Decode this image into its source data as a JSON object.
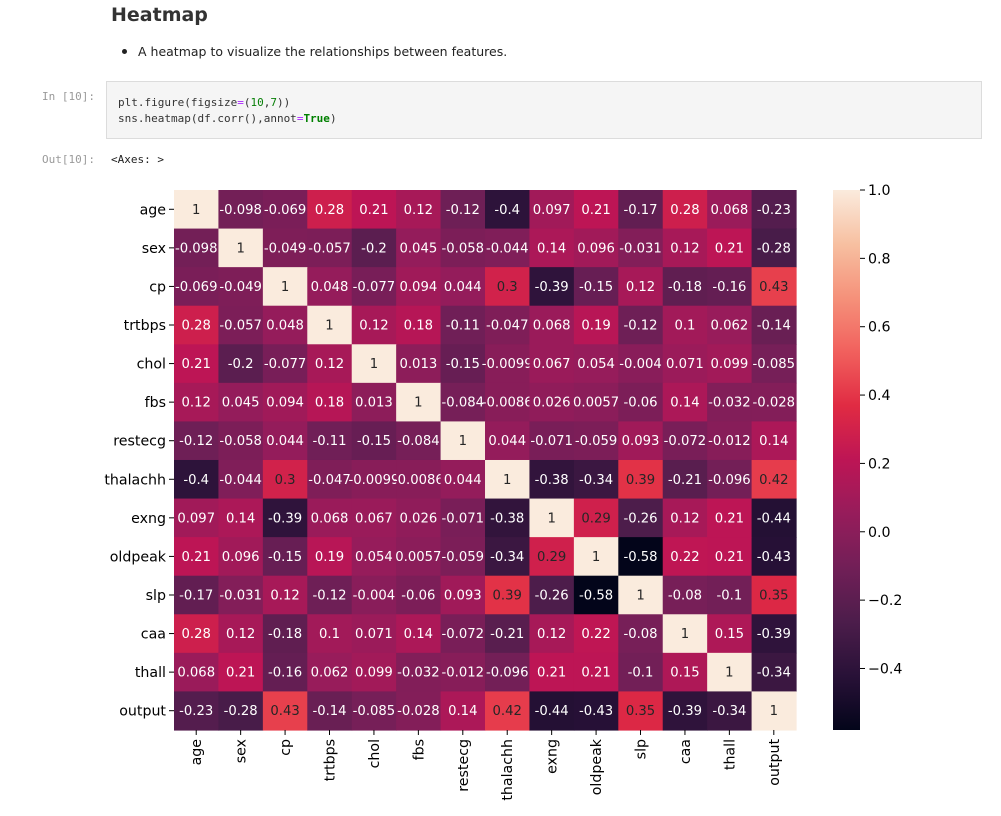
{
  "notebook": {
    "heading": "Heatmap",
    "bullet": "A heatmap to visualize the relationships between features.",
    "in_prompt": "In [10]:",
    "code_line_1": [
      "plt.figure(figsize",
      "=",
      "(",
      "10",
      ",",
      "7",
      "))"
    ],
    "code_line_2": [
      "sns.heatmap(df.corr(),annot",
      "=",
      "True",
      ")"
    ],
    "out_prompt": "Out[10]:",
    "out_text": "<Axes: >"
  },
  "chart_data": {
    "type": "heatmap",
    "title": "",
    "labels": [
      "age",
      "sex",
      "cp",
      "trtbps",
      "chol",
      "fbs",
      "restecg",
      "thalachh",
      "exng",
      "oldpeak",
      "slp",
      "caa",
      "thall",
      "output"
    ],
    "annotations": [
      [
        "1",
        "-0.098",
        "-0.069",
        "0.28",
        "0.21",
        "0.12",
        "-0.12",
        "-0.4",
        "0.097",
        "0.21",
        "-0.17",
        "0.28",
        "0.068",
        "-0.23"
      ],
      [
        "-0.098",
        "1",
        "-0.049",
        "-0.057",
        "-0.2",
        "0.045",
        "-0.058",
        "-0.044",
        "0.14",
        "0.096",
        "-0.031",
        "0.12",
        "0.21",
        "-0.28"
      ],
      [
        "-0.069",
        "-0.049",
        "1",
        "0.048",
        "-0.077",
        "0.094",
        "0.044",
        "0.3",
        "-0.39",
        "-0.15",
        "0.12",
        "-0.18",
        "-0.16",
        "0.43"
      ],
      [
        "0.28",
        "-0.057",
        "0.048",
        "1",
        "0.12",
        "0.18",
        "-0.11",
        "-0.047",
        "0.068",
        "0.19",
        "-0.12",
        "0.1",
        "0.062",
        "-0.14"
      ],
      [
        "0.21",
        "-0.2",
        "-0.077",
        "0.12",
        "1",
        "0.013",
        "-0.15",
        "-0.0099",
        "0.067",
        "0.054",
        "-0.004",
        "0.071",
        "0.099",
        "-0.085"
      ],
      [
        "0.12",
        "0.045",
        "0.094",
        "0.18",
        "0.013",
        "1",
        "-0.084",
        "-0.0086",
        "0.026",
        "0.0057",
        "-0.06",
        "0.14",
        "-0.032",
        "-0.028"
      ],
      [
        "-0.12",
        "-0.058",
        "0.044",
        "-0.11",
        "-0.15",
        "-0.084",
        "1",
        "0.044",
        "-0.071",
        "-0.059",
        "0.093",
        "-0.072",
        "-0.012",
        "0.14"
      ],
      [
        "-0.4",
        "-0.044",
        "0.3",
        "-0.047",
        "-0.0099",
        "-0.0086",
        "0.044",
        "1",
        "-0.38",
        "-0.34",
        "0.39",
        "-0.21",
        "-0.096",
        "0.42"
      ],
      [
        "0.097",
        "0.14",
        "-0.39",
        "0.068",
        "0.067",
        "0.026",
        "-0.071",
        "-0.38",
        "1",
        "0.29",
        "-0.26",
        "0.12",
        "0.21",
        "-0.44"
      ],
      [
        "0.21",
        "0.096",
        "-0.15",
        "0.19",
        "0.054",
        "0.0057",
        "-0.059",
        "-0.34",
        "0.29",
        "1",
        "-0.58",
        "0.22",
        "0.21",
        "-0.43"
      ],
      [
        "-0.17",
        "-0.031",
        "0.12",
        "-0.12",
        "-0.004",
        "-0.06",
        "0.093",
        "0.39",
        "-0.26",
        "-0.58",
        "1",
        "-0.08",
        "-0.1",
        "0.35"
      ],
      [
        "0.28",
        "0.12",
        "-0.18",
        "0.1",
        "0.071",
        "0.14",
        "-0.072",
        "-0.21",
        "0.12",
        "0.22",
        "-0.08",
        "1",
        "0.15",
        "-0.39"
      ],
      [
        "0.068",
        "0.21",
        "-0.16",
        "0.062",
        "0.099",
        "-0.032",
        "-0.012",
        "-0.096",
        "0.21",
        "0.21",
        "-0.1",
        "0.15",
        "1",
        "-0.34"
      ],
      [
        "-0.23",
        "-0.28",
        "0.43",
        "-0.14",
        "-0.085",
        "-0.028",
        "0.14",
        "0.42",
        "-0.44",
        "-0.43",
        "0.35",
        "-0.39",
        "-0.34",
        "1"
      ]
    ],
    "vmin": -0.58,
    "vmax": 1.0,
    "colormap": "rocket",
    "colorbar_ticks": [
      1.0,
      0.8,
      0.6,
      0.4,
      0.2,
      0.0,
      -0.2,
      -0.4
    ],
    "colorbar_tick_labels": [
      "1.0",
      "0.8",
      "0.6",
      "0.4",
      "0.2",
      "0.0",
      "−0.2",
      "−0.4"
    ]
  }
}
